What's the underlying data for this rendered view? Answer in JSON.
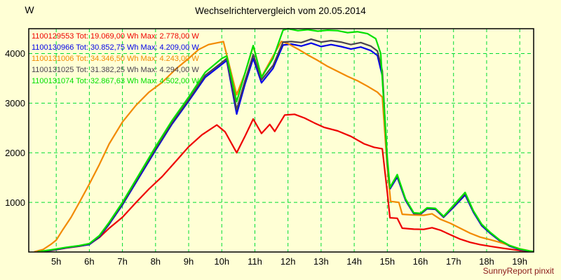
{
  "title": "Wechselrichtervergleich vom 20.05.2014",
  "y_axis_unit": "W",
  "footer": "SunnyReport pinxit",
  "colors": {
    "background": "#ffffd5",
    "grid": "#00dd33",
    "axis": "#000000",
    "footer_text": "#8b1a1a",
    "title_text": "#000000"
  },
  "chart_data": {
    "type": "line",
    "title": "Wechselrichtervergleich vom 20.05.2014",
    "xlabel": "",
    "ylabel": "W",
    "x_domain": [
      4.17,
      19.42
    ],
    "ylim": [
      0,
      4500
    ],
    "y_ticks": [
      1000,
      2000,
      3000,
      4000
    ],
    "x_tick_labels": [
      "5h",
      "6h",
      "7h",
      "8h",
      "9h",
      "10h",
      "11h",
      "12h",
      "13h",
      "14h",
      "15h",
      "16h",
      "17h",
      "18h",
      "19h"
    ],
    "grid": "green dashed, vertical per hour and horizontal per 1000 W",
    "legend_position": "top-left inside plot",
    "legend_format": "{id} Tot: {total_wh} Wh Max: {max_w} W",
    "series": [
      {
        "id": "1100129553",
        "total_wh": "19.069,00",
        "max_w": "2.778,00",
        "color": "#ee0000",
        "points": [
          [
            4.45,
            4
          ],
          [
            4.8,
            25
          ],
          [
            5.0,
            45
          ],
          [
            5.3,
            80
          ],
          [
            5.7,
            115
          ],
          [
            6.0,
            155
          ],
          [
            6.3,
            290
          ],
          [
            6.6,
            480
          ],
          [
            7.0,
            700
          ],
          [
            7.4,
            990
          ],
          [
            7.8,
            1270
          ],
          [
            8.2,
            1520
          ],
          [
            8.6,
            1820
          ],
          [
            9.0,
            2120
          ],
          [
            9.4,
            2360
          ],
          [
            9.85,
            2560
          ],
          [
            10.1,
            2420
          ],
          [
            10.45,
            2000
          ],
          [
            10.7,
            2330
          ],
          [
            10.95,
            2680
          ],
          [
            11.2,
            2390
          ],
          [
            11.45,
            2570
          ],
          [
            11.6,
            2430
          ],
          [
            11.9,
            2760
          ],
          [
            12.2,
            2775
          ],
          [
            12.5,
            2700
          ],
          [
            12.8,
            2600
          ],
          [
            13.1,
            2510
          ],
          [
            13.5,
            2440
          ],
          [
            13.9,
            2330
          ],
          [
            14.3,
            2180
          ],
          [
            14.6,
            2110
          ],
          [
            14.85,
            2080
          ],
          [
            15.0,
            1200
          ],
          [
            15.08,
            690
          ],
          [
            15.3,
            680
          ],
          [
            15.45,
            480
          ],
          [
            15.8,
            460
          ],
          [
            16.1,
            455
          ],
          [
            16.35,
            490
          ],
          [
            16.6,
            440
          ],
          [
            16.9,
            350
          ],
          [
            17.2,
            260
          ],
          [
            17.5,
            195
          ],
          [
            17.8,
            150
          ],
          [
            18.1,
            115
          ],
          [
            18.5,
            75
          ],
          [
            18.9,
            40
          ],
          [
            19.2,
            15
          ],
          [
            19.4,
            4
          ]
        ]
      },
      {
        "id": "1100130966",
        "total_wh": "30.852,75",
        "max_w": "4.209,00",
        "color": "#0000e8",
        "points": [
          [
            4.45,
            4
          ],
          [
            4.8,
            30
          ],
          [
            5.0,
            50
          ],
          [
            5.3,
            85
          ],
          [
            5.7,
            120
          ],
          [
            6.0,
            150
          ],
          [
            6.3,
            300
          ],
          [
            6.6,
            560
          ],
          [
            7.0,
            950
          ],
          [
            7.5,
            1500
          ],
          [
            8.0,
            2050
          ],
          [
            8.5,
            2580
          ],
          [
            9.0,
            3040
          ],
          [
            9.5,
            3520
          ],
          [
            10.0,
            3780
          ],
          [
            10.15,
            3860
          ],
          [
            10.45,
            2780
          ],
          [
            10.7,
            3380
          ],
          [
            10.95,
            3900
          ],
          [
            11.2,
            3410
          ],
          [
            11.55,
            3700
          ],
          [
            11.85,
            4170
          ],
          [
            12.1,
            4190
          ],
          [
            12.4,
            4150
          ],
          [
            12.7,
            4209
          ],
          [
            13.0,
            4140
          ],
          [
            13.3,
            4180
          ],
          [
            13.6,
            4140
          ],
          [
            13.9,
            4090
          ],
          [
            14.2,
            4130
          ],
          [
            14.5,
            4060
          ],
          [
            14.7,
            3960
          ],
          [
            14.85,
            3550
          ],
          [
            15.0,
            1750
          ],
          [
            15.08,
            1270
          ],
          [
            15.3,
            1510
          ],
          [
            15.55,
            1040
          ],
          [
            15.8,
            770
          ],
          [
            16.0,
            760
          ],
          [
            16.2,
            870
          ],
          [
            16.45,
            860
          ],
          [
            16.7,
            700
          ],
          [
            17.0,
            900
          ],
          [
            17.35,
            1150
          ],
          [
            17.6,
            800
          ],
          [
            17.85,
            530
          ],
          [
            18.1,
            380
          ],
          [
            18.4,
            225
          ],
          [
            18.7,
            115
          ],
          [
            19.0,
            50
          ],
          [
            19.3,
            15
          ],
          [
            19.45,
            3
          ]
        ]
      },
      {
        "id": "1100131006",
        "total_wh": "34.346,50",
        "max_w": "4.243,00",
        "color": "#f18a00",
        "points": [
          [
            4.35,
            5
          ],
          [
            4.6,
            50
          ],
          [
            4.85,
            160
          ],
          [
            5.0,
            240
          ],
          [
            5.2,
            450
          ],
          [
            5.45,
            700
          ],
          [
            5.7,
            1000
          ],
          [
            6.0,
            1370
          ],
          [
            6.3,
            1760
          ],
          [
            6.6,
            2180
          ],
          [
            7.0,
            2620
          ],
          [
            7.4,
            2950
          ],
          [
            7.8,
            3220
          ],
          [
            8.2,
            3420
          ],
          [
            8.6,
            3680
          ],
          [
            9.0,
            3900
          ],
          [
            9.3,
            4080
          ],
          [
            9.6,
            4180
          ],
          [
            9.9,
            4220
          ],
          [
            10.05,
            4240
          ],
          [
            10.45,
            3170
          ],
          [
            10.7,
            3600
          ],
          [
            10.95,
            4150
          ],
          [
            11.2,
            3530
          ],
          [
            11.55,
            3950
          ],
          [
            11.8,
            4243
          ],
          [
            12.0,
            4200
          ],
          [
            12.3,
            4090
          ],
          [
            12.6,
            3970
          ],
          [
            12.9,
            3860
          ],
          [
            13.2,
            3740
          ],
          [
            13.5,
            3640
          ],
          [
            13.8,
            3540
          ],
          [
            14.1,
            3450
          ],
          [
            14.4,
            3340
          ],
          [
            14.7,
            3220
          ],
          [
            14.85,
            3120
          ],
          [
            15.0,
            1700
          ],
          [
            15.1,
            1020
          ],
          [
            15.35,
            1000
          ],
          [
            15.45,
            760
          ],
          [
            15.8,
            745
          ],
          [
            16.1,
            740
          ],
          [
            16.35,
            770
          ],
          [
            16.6,
            660
          ],
          [
            16.9,
            580
          ],
          [
            17.2,
            480
          ],
          [
            17.5,
            380
          ],
          [
            17.8,
            300
          ],
          [
            18.1,
            250
          ],
          [
            18.4,
            195
          ],
          [
            18.7,
            130
          ],
          [
            19.0,
            65
          ],
          [
            19.3,
            22
          ],
          [
            19.45,
            5
          ]
        ]
      },
      {
        "id": "1100131025",
        "total_wh": "31.382,25",
        "max_w": "4.294,00",
        "color": "#4a4350",
        "points": [
          [
            4.45,
            5
          ],
          [
            4.8,
            35
          ],
          [
            5.0,
            55
          ],
          [
            5.3,
            90
          ],
          [
            5.7,
            125
          ],
          [
            6.0,
            160
          ],
          [
            6.3,
            310
          ],
          [
            6.6,
            580
          ],
          [
            7.0,
            970
          ],
          [
            7.5,
            1530
          ],
          [
            8.0,
            2080
          ],
          [
            8.5,
            2610
          ],
          [
            9.0,
            3070
          ],
          [
            9.5,
            3560
          ],
          [
            10.0,
            3820
          ],
          [
            10.15,
            3900
          ],
          [
            10.45,
            2870
          ],
          [
            10.7,
            3450
          ],
          [
            10.95,
            3980
          ],
          [
            11.2,
            3470
          ],
          [
            11.55,
            3760
          ],
          [
            11.85,
            4230
          ],
          [
            12.1,
            4240
          ],
          [
            12.4,
            4220
          ],
          [
            12.7,
            4290
          ],
          [
            13.0,
            4230
          ],
          [
            13.3,
            4260
          ],
          [
            13.6,
            4230
          ],
          [
            13.9,
            4180
          ],
          [
            14.2,
            4220
          ],
          [
            14.5,
            4150
          ],
          [
            14.7,
            4050
          ],
          [
            14.85,
            3650
          ],
          [
            15.0,
            1800
          ],
          [
            15.08,
            1290
          ],
          [
            15.3,
            1540
          ],
          [
            15.55,
            1060
          ],
          [
            15.8,
            780
          ],
          [
            16.0,
            770
          ],
          [
            16.2,
            880
          ],
          [
            16.45,
            870
          ],
          [
            16.7,
            710
          ],
          [
            17.0,
            920
          ],
          [
            17.35,
            1180
          ],
          [
            17.6,
            820
          ],
          [
            17.85,
            550
          ],
          [
            18.1,
            395
          ],
          [
            18.4,
            235
          ],
          [
            18.7,
            125
          ],
          [
            19.0,
            55
          ],
          [
            19.3,
            18
          ],
          [
            19.45,
            4
          ]
        ]
      },
      {
        "id": "1100131074",
        "total_wh": "32.867,63",
        "max_w": "4.502,00",
        "color": "#00e000",
        "points": [
          [
            4.45,
            5
          ],
          [
            4.8,
            40
          ],
          [
            5.0,
            60
          ],
          [
            5.3,
            95
          ],
          [
            5.7,
            130
          ],
          [
            6.0,
            170
          ],
          [
            6.3,
            330
          ],
          [
            6.6,
            600
          ],
          [
            7.0,
            1000
          ],
          [
            7.5,
            1560
          ],
          [
            8.0,
            2120
          ],
          [
            8.5,
            2650
          ],
          [
            9.0,
            3120
          ],
          [
            9.5,
            3620
          ],
          [
            10.0,
            3900
          ],
          [
            10.15,
            3950
          ],
          [
            10.45,
            3030
          ],
          [
            10.7,
            3600
          ],
          [
            10.95,
            4160
          ],
          [
            11.2,
            3520
          ],
          [
            11.55,
            3900
          ],
          [
            11.85,
            4470
          ],
          [
            12.0,
            4500
          ],
          [
            12.3,
            4460
          ],
          [
            12.6,
            4480
          ],
          [
            12.9,
            4450
          ],
          [
            13.2,
            4470
          ],
          [
            13.5,
            4460
          ],
          [
            13.8,
            4420
          ],
          [
            14.1,
            4440
          ],
          [
            14.4,
            4400
          ],
          [
            14.65,
            4300
          ],
          [
            14.8,
            4000
          ],
          [
            15.0,
            1900
          ],
          [
            15.08,
            1300
          ],
          [
            15.3,
            1560
          ],
          [
            15.55,
            1070
          ],
          [
            15.8,
            790
          ],
          [
            16.0,
            780
          ],
          [
            16.2,
            890
          ],
          [
            16.45,
            880
          ],
          [
            16.7,
            720
          ],
          [
            17.0,
            940
          ],
          [
            17.35,
            1200
          ],
          [
            17.6,
            830
          ],
          [
            17.85,
            560
          ],
          [
            18.1,
            400
          ],
          [
            18.4,
            240
          ],
          [
            18.7,
            130
          ],
          [
            19.0,
            60
          ],
          [
            19.3,
            20
          ],
          [
            19.45,
            5
          ]
        ]
      }
    ]
  }
}
